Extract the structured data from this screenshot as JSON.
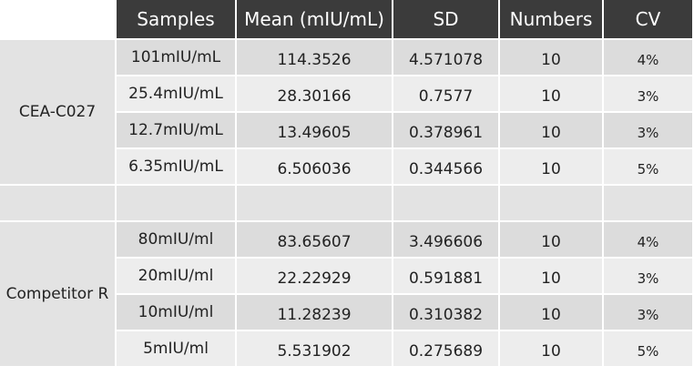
{
  "table": {
    "columns": [
      "Samples",
      "Mean (mIU/mL)",
      "SD",
      "Numbers",
      "CV"
    ],
    "groups": [
      {
        "label": "CEA-C027",
        "rows": [
          [
            "101mIU/mL",
            "114.3526",
            "4.571078",
            "10",
            "4%"
          ],
          [
            "25.4mIU/mL",
            "28.30166",
            "0.7577",
            "10",
            "3%"
          ],
          [
            "12.7mIU/mL",
            "13.49605",
            "0.378961",
            "10",
            "3%"
          ],
          [
            "6.35mIU/mL",
            "6.506036",
            "0.344566",
            "10",
            "5%"
          ]
        ]
      },
      {
        "label": "Competitor R",
        "rows": [
          [
            "80mIU/ml",
            "83.65607",
            "3.496606",
            "10",
            "4%"
          ],
          [
            "20mIU/ml",
            "22.22929",
            "0.591881",
            "10",
            "3%"
          ],
          [
            "10mIU/ml",
            "11.28239",
            "0.310382",
            "10",
            "3%"
          ],
          [
            "5mIU/ml",
            "5.531902",
            "0.275689",
            "10",
            "5%"
          ]
        ]
      }
    ]
  }
}
